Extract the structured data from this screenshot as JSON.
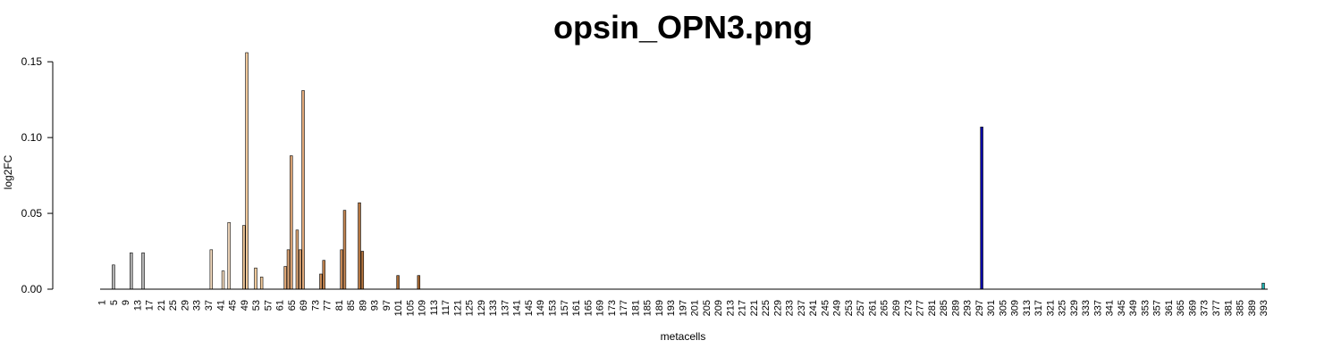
{
  "chart_data": {
    "type": "bar",
    "title": "opsin_OPN3.png",
    "xlabel": "metacells",
    "ylabel": "log2FC",
    "ylim": [
      0,
      0.16
    ],
    "yticks": [
      "0.00",
      "0.05",
      "0.10",
      "0.15"
    ],
    "n_categories": 394,
    "x_tick_labels": [
      "1",
      "5",
      "9",
      "13",
      "17",
      "21",
      "25",
      "29",
      "33",
      "37",
      "41",
      "45",
      "49",
      "53",
      "57",
      "61",
      "65",
      "69",
      "73",
      "77",
      "81",
      "85",
      "89",
      "93",
      "97",
      "101",
      "105",
      "109",
      "113",
      "117",
      "121",
      "125",
      "129",
      "133",
      "137",
      "141",
      "145",
      "149",
      "153",
      "157",
      "161",
      "165",
      "169",
      "173",
      "177",
      "181",
      "185",
      "189",
      "193",
      "197",
      "201",
      "205",
      "209",
      "213",
      "217",
      "221",
      "225",
      "229",
      "233",
      "237",
      "241",
      "245",
      "249",
      "253",
      "257",
      "261",
      "265",
      "269",
      "273",
      "277",
      "281",
      "285",
      "289",
      "293",
      "297",
      "301",
      "305",
      "309",
      "313",
      "317",
      "321",
      "325",
      "329",
      "333",
      "337",
      "341",
      "345",
      "349",
      "353",
      "357",
      "361",
      "365",
      "369",
      "373",
      "377",
      "381",
      "385",
      "389",
      "393"
    ],
    "bars": [
      {
        "metacell": 5,
        "value": 0.016,
        "color": "#b3b3b3"
      },
      {
        "metacell": 11,
        "value": 0.024,
        "color": "#b3b3b3"
      },
      {
        "metacell": 15,
        "value": 0.024,
        "color": "#b3b3b3"
      },
      {
        "metacell": 38,
        "value": 0.026,
        "color": "#f5dcc0"
      },
      {
        "metacell": 42,
        "value": 0.012,
        "color": "#f5dcc0"
      },
      {
        "metacell": 44,
        "value": 0.044,
        "color": "#f5dcc0"
      },
      {
        "metacell": 49,
        "value": 0.042,
        "color": "#f0c99b"
      },
      {
        "metacell": 50,
        "value": 0.156,
        "color": "#f0c99b"
      },
      {
        "metacell": 53,
        "value": 0.014,
        "color": "#f0c99b"
      },
      {
        "metacell": 55,
        "value": 0.008,
        "color": "#f0c99b"
      },
      {
        "metacell": 63,
        "value": 0.015,
        "color": "#e0a878"
      },
      {
        "metacell": 64,
        "value": 0.026,
        "color": "#e0a878"
      },
      {
        "metacell": 65,
        "value": 0.088,
        "color": "#e0a878"
      },
      {
        "metacell": 67,
        "value": 0.039,
        "color": "#e0a878"
      },
      {
        "metacell": 68,
        "value": 0.026,
        "color": "#e0a878"
      },
      {
        "metacell": 69,
        "value": 0.131,
        "color": "#e0a878"
      },
      {
        "metacell": 75,
        "value": 0.01,
        "color": "#c88a55"
      },
      {
        "metacell": 76,
        "value": 0.019,
        "color": "#c88a55"
      },
      {
        "metacell": 82,
        "value": 0.026,
        "color": "#c88a55"
      },
      {
        "metacell": 83,
        "value": 0.052,
        "color": "#c88a55"
      },
      {
        "metacell": 88,
        "value": 0.057,
        "color": "#b5753f"
      },
      {
        "metacell": 89,
        "value": 0.025,
        "color": "#b5753f"
      },
      {
        "metacell": 101,
        "value": 0.009,
        "color": "#a86a35"
      },
      {
        "metacell": 108,
        "value": 0.009,
        "color": "#a86a35"
      },
      {
        "metacell": 298,
        "value": 0.107,
        "color": "#0a0aa8"
      },
      {
        "metacell": 393,
        "value": 0.004,
        "color": "#1fb0b0"
      }
    ]
  }
}
